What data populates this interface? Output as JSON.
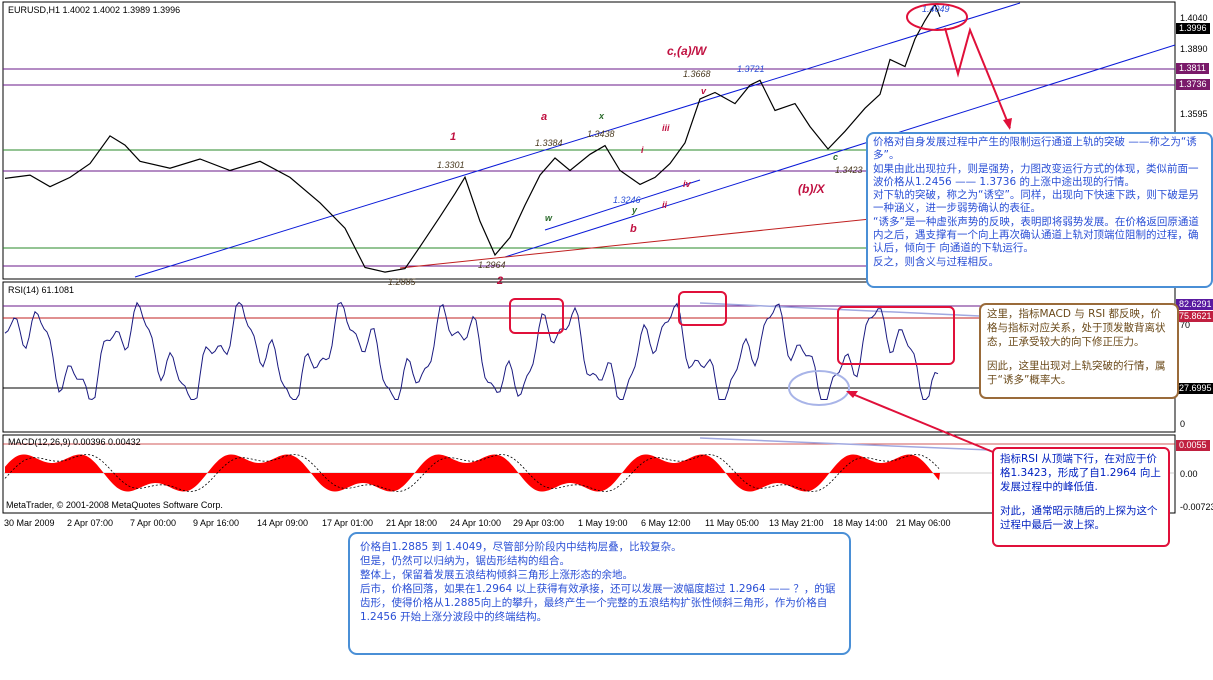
{
  "window": {
    "symbol_label": "EURUSD,H1  1.4002 1.4002 1.3989 1.3996",
    "copyright": "MetaTrader, © 2001-2008 MetaQuotes Software Corp."
  },
  "price_axis": {
    "ticks": [
      "1.4040",
      "1.3890",
      "1.3595"
    ],
    "badges": [
      {
        "text": "1.3996",
        "bg": "#000000",
        "fg": "#ffffff"
      },
      {
        "text": "1.3811",
        "bg": "#7a1a6a",
        "fg": "#ffffff"
      },
      {
        "text": "1.3736",
        "bg": "#7a1a6a",
        "fg": "#ffffff"
      }
    ]
  },
  "time_axis": [
    "30 Mar 2009",
    "2 Apr 07:00",
    "7 Apr 00:00",
    "9 Apr 16:00",
    "14 Apr 09:00",
    "17 Apr 01:00",
    "21 Apr 18:00",
    "24 Apr 10:00",
    "29 Apr 03:00",
    "1 May 19:00",
    "6 May 12:00",
    "11 May 05:00",
    "13 May 21:00",
    "18 May 14:00",
    "21 May 06:00"
  ],
  "rsi": {
    "label": "RSI(14) 61.1081",
    "ticks": [
      "70",
      "0"
    ],
    "badges": [
      {
        "text": "82.6291",
        "bg": "#5a1aa0",
        "fg": "#ffffff"
      },
      {
        "text": "75.8621",
        "bg": "#c02040",
        "fg": "#ffffff"
      },
      {
        "text": "27.6995",
        "bg": "#000000",
        "fg": "#ffffff"
      }
    ]
  },
  "macd": {
    "label": "MACD(12,26,9) 0.00396 0.00432",
    "ticks": [
      "0.00",
      "-0.00723"
    ],
    "badges": [
      {
        "text": "0.0055",
        "bg": "#c02040",
        "fg": "#ffffff"
      }
    ]
  },
  "annotations": {
    "price_labels": [
      "1.4049",
      "1.3721",
      "1.3668",
      "1.3438",
      "1.3384",
      "1.3301",
      "1.3246",
      "1.3423",
      "1.2964",
      "1.2885"
    ],
    "wave_labels": [
      "c,(a)/W",
      "(b)/X",
      "1",
      "2",
      "a",
      "b",
      "c",
      "x",
      "w",
      "y",
      "v",
      "i",
      "ii",
      "iii",
      "iv"
    ]
  },
  "notes": {
    "top": [
      "价格对自身发展过程中产生的限制运行通道上轨的突破 ——称之为“诱多”。",
      "如果由此出现拉升，则是强势，力图改变运行方式的体现，类似前面一波价格从1.2456 —— 1.3736 的上涨中途出现的行情。",
      "对下轨的突破，称之为“诱空”。同样，出现向下快速下跌，则下破是另一种涵义，进一步弱势确认的表征。",
      "“诱多”是一种虚张声势的反映，表明即将弱势发展。在价格返回原通道 内之后，遇支撑有一个向上再次确认通道上轨对顶端位阻制的过程，确认后，倾向于 向通道的下轨运行。",
      "反之，则含义与过程相反。"
    ],
    "mid": [
      "这里，指标MACD 与 RSI 都反映，价格与指标对应关系，处于顶发散背离状态，正承受较大的向下修正压力。",
      "因此，这里出现对上轨突破的行情，属于“诱多”概率大。"
    ],
    "red": [
      "指标RSI 从顶端下行，在对应于价格1.3423，形成了自1.2964 向上发展过程中的峰低值.",
      "对此，通常昭示随后的上探为这个过程中最后一波上探。"
    ],
    "bottom": [
      "价格自1.2885 到 1.4049，尽管部分阶段内中结构层叠，比较复杂。",
      "但是，仍然可以归纳为，锯齿形结构的组合。",
      "整体上，保留着发展五浪结构倾斜三角形上涨形态的余地。",
      "",
      "后市，价格回落，如果在1.2964 以上获得有效承接，还可以发展一波幅度超过 1.2964 —— ？，的锯齿形，使得价格从1.2885向上的攀升，最终产生一个完整的五浪结构扩张性倾斜三角形，作为价格自1.2456 开始上涨分波段中的终端结构。"
    ]
  },
  "colors": {
    "candle": "#000000",
    "channel": "#0a1ad8",
    "horizontal_purple": "#6a1a8a",
    "horizontal_green": "#2a8a2a",
    "horizontal_red": "#c02020",
    "rsi_line": "#1a1a80",
    "macd_hist": "#ff0000",
    "annotation_red": "#e0103a",
    "wave_brown": "#7a3a10",
    "wave_red": "#c01040"
  },
  "chart_data": {
    "type": "line",
    "title": "EURUSD,H1",
    "x_range": [
      "30 Mar 2009",
      "21 May 06:00"
    ],
    "price_key_points": [
      {
        "label": "1",
        "price": 1.3301
      },
      {
        "label": "2",
        "price": 1.2964
      },
      {
        "label": "start",
        "price": 1.2885
      },
      {
        "label": "x",
        "price": 1.3438
      },
      {
        "label": "a",
        "price": 1.3384
      },
      {
        "label": "b",
        "price": 1.3246
      },
      {
        "label": "c,(a)/W",
        "price": 1.3721
      },
      {
        "label": "c,(a)/W inner",
        "price": 1.3668
      },
      {
        "label": "(b)/X",
        "price": 1.3423
      },
      {
        "label": "top",
        "price": 1.4049
      },
      {
        "label": "last",
        "price": 1.3996
      }
    ],
    "price_ylim": [
      1.286,
      1.406
    ],
    "horizontal_levels": [
      1.3811,
      1.3736
    ],
    "rsi_levels": [
      82.6291,
      75.8621,
      27.6995
    ],
    "rsi_last": 61.1081,
    "macd_last": [
      0.00396,
      0.00432
    ],
    "macd_ylim": [
      -0.00723,
      0.00751
    ],
    "grid": false
  }
}
